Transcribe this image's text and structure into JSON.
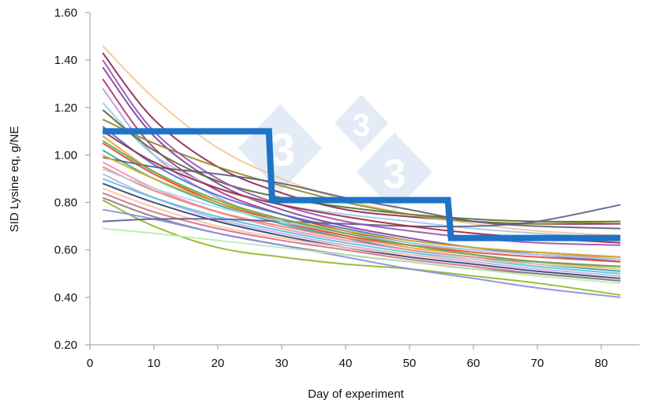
{
  "chart_data": {
    "type": "line",
    "title": "",
    "xlabel": "Day of experiment",
    "ylabel": "SID Lysine eq, g/NE",
    "xlim": [
      0,
      86
    ],
    "ylim": [
      0.2,
      1.6
    ],
    "x_ticks": [
      "0",
      "10",
      "20",
      "30",
      "40",
      "50",
      "60",
      "70",
      "80"
    ],
    "y_ticks": [
      "0.20",
      "0.40",
      "0.60",
      "0.80",
      "1.00",
      "1.20",
      "1.40",
      "1.60"
    ],
    "grid": false,
    "legend": "none",
    "watermark": "333",
    "x": [
      2,
      10,
      20,
      30,
      40,
      50,
      60,
      70,
      83
    ],
    "series": [
      {
        "color": "#8b2252",
        "values": [
          1.43,
          1.15,
          0.95,
          0.84,
          0.77,
          0.74,
          0.72,
          0.71,
          0.71
        ]
      },
      {
        "color": "#f2c894",
        "values": [
          1.46,
          1.24,
          1.03,
          0.9,
          0.81,
          0.75,
          0.71,
          0.68,
          0.66
        ]
      },
      {
        "color": "#7b3f9e",
        "values": [
          1.37,
          1.08,
          0.88,
          0.77,
          0.7,
          0.65,
          0.61,
          0.59,
          0.57
        ]
      },
      {
        "color": "#b0307a",
        "values": [
          1.32,
          1.03,
          0.85,
          0.75,
          0.68,
          0.63,
          0.6,
          0.58,
          0.56
        ]
      },
      {
        "color": "#b39ddb",
        "values": [
          1.28,
          1.0,
          0.82,
          0.72,
          0.65,
          0.6,
          0.57,
          0.55,
          0.53
        ]
      },
      {
        "color": "#9ec8ea",
        "values": [
          1.22,
          1.0,
          0.86,
          0.79,
          0.75,
          0.72,
          0.69,
          0.67,
          0.65
        ]
      },
      {
        "color": "#4e6b2e",
        "values": [
          1.19,
          1.02,
          0.89,
          0.82,
          0.78,
          0.75,
          0.73,
          0.72,
          0.72
        ]
      },
      {
        "color": "#8a8a1e",
        "values": [
          1.15,
          1.05,
          0.95,
          0.87,
          0.8,
          0.75,
          0.72,
          0.71,
          0.72
        ]
      },
      {
        "color": "#4a6fd0",
        "values": [
          1.12,
          0.96,
          0.83,
          0.75,
          0.69,
          0.64,
          0.61,
          0.58,
          0.55
        ]
      },
      {
        "color": "#f0a030",
        "values": [
          1.08,
          0.93,
          0.8,
          0.72,
          0.66,
          0.61,
          0.58,
          0.55,
          0.52
        ]
      },
      {
        "color": "#e0473c",
        "values": [
          1.05,
          0.92,
          0.8,
          0.72,
          0.66,
          0.62,
          0.59,
          0.57,
          0.55
        ]
      },
      {
        "color": "#2aa6a0",
        "values": [
          1.02,
          0.9,
          0.79,
          0.71,
          0.65,
          0.6,
          0.57,
          0.54,
          0.51
        ]
      },
      {
        "color": "#5a5a80",
        "values": [
          0.99,
          0.95,
          0.92,
          0.88,
          0.82,
          0.77,
          0.72,
          0.7,
          0.69
        ]
      },
      {
        "color": "#f48fb1",
        "values": [
          0.97,
          0.86,
          0.76,
          0.69,
          0.64,
          0.6,
          0.57,
          0.55,
          0.53
        ]
      },
      {
        "color": "#f08070",
        "values": [
          0.95,
          0.85,
          0.76,
          0.7,
          0.65,
          0.62,
          0.6,
          0.58,
          0.57
        ]
      },
      {
        "color": "#c5a8e8",
        "values": [
          0.92,
          0.82,
          0.73,
          0.67,
          0.62,
          0.58,
          0.55,
          0.52,
          0.49
        ]
      },
      {
        "color": "#4fc3d8",
        "values": [
          0.9,
          0.82,
          0.74,
          0.68,
          0.63,
          0.59,
          0.56,
          0.53,
          0.5
        ]
      },
      {
        "color": "#2c3e70",
        "values": [
          0.88,
          0.8,
          0.72,
          0.66,
          0.61,
          0.57,
          0.54,
          0.51,
          0.48
        ]
      },
      {
        "color": "#f7c59f",
        "values": [
          0.86,
          0.78,
          0.7,
          0.65,
          0.61,
          0.58,
          0.56,
          0.54,
          0.52
        ]
      },
      {
        "color": "#d46a8a",
        "values": [
          0.84,
          0.76,
          0.69,
          0.64,
          0.6,
          0.56,
          0.53,
          0.5,
          0.47
        ]
      },
      {
        "color": "#7f7f7f",
        "values": [
          0.82,
          0.74,
          0.67,
          0.62,
          0.58,
          0.55,
          0.52,
          0.5,
          0.47
        ]
      },
      {
        "color": "#8cb820",
        "values": [
          0.81,
          0.7,
          0.61,
          0.57,
          0.54,
          0.52,
          0.49,
          0.46,
          0.41
        ]
      },
      {
        "color": "#8c8ce0",
        "values": [
          0.77,
          0.73,
          0.67,
          0.62,
          0.57,
          0.52,
          0.48,
          0.44,
          0.4
        ]
      },
      {
        "color": "#5c5c8a",
        "values": [
          0.72,
          0.73,
          0.73,
          0.72,
          0.71,
          0.7,
          0.7,
          0.72,
          0.79
        ]
      },
      {
        "color": "#b8ecb0",
        "values": [
          0.69,
          0.67,
          0.64,
          0.61,
          0.58,
          0.55,
          0.52,
          0.49,
          0.46
        ]
      },
      {
        "color": "#9b4fb0",
        "values": [
          1.4,
          1.1,
          0.9,
          0.79,
          0.72,
          0.68,
          0.65,
          0.63,
          0.62
        ]
      },
      {
        "color": "#a0243a",
        "values": [
          1.1,
          0.97,
          0.86,
          0.79,
          0.74,
          0.7,
          0.67,
          0.65,
          0.63
        ]
      },
      {
        "color": "#d6b020",
        "values": [
          1.0,
          0.9,
          0.8,
          0.73,
          0.68,
          0.64,
          0.61,
          0.59,
          0.57
        ]
      },
      {
        "color": "#a8d8f0",
        "values": [
          0.94,
          0.86,
          0.78,
          0.72,
          0.67,
          0.63,
          0.6,
          0.58,
          0.56
        ]
      },
      {
        "color": "#5aa84a",
        "values": [
          1.06,
          0.93,
          0.81,
          0.73,
          0.67,
          0.62,
          0.58,
          0.55,
          0.53
        ]
      }
    ],
    "step_series": {
      "color": "#1e73c8",
      "points": [
        [
          2,
          1.1
        ],
        [
          28,
          1.1
        ],
        [
          28.5,
          0.81
        ],
        [
          56,
          0.81
        ],
        [
          56.5,
          0.65
        ],
        [
          83,
          0.65
        ]
      ]
    }
  }
}
